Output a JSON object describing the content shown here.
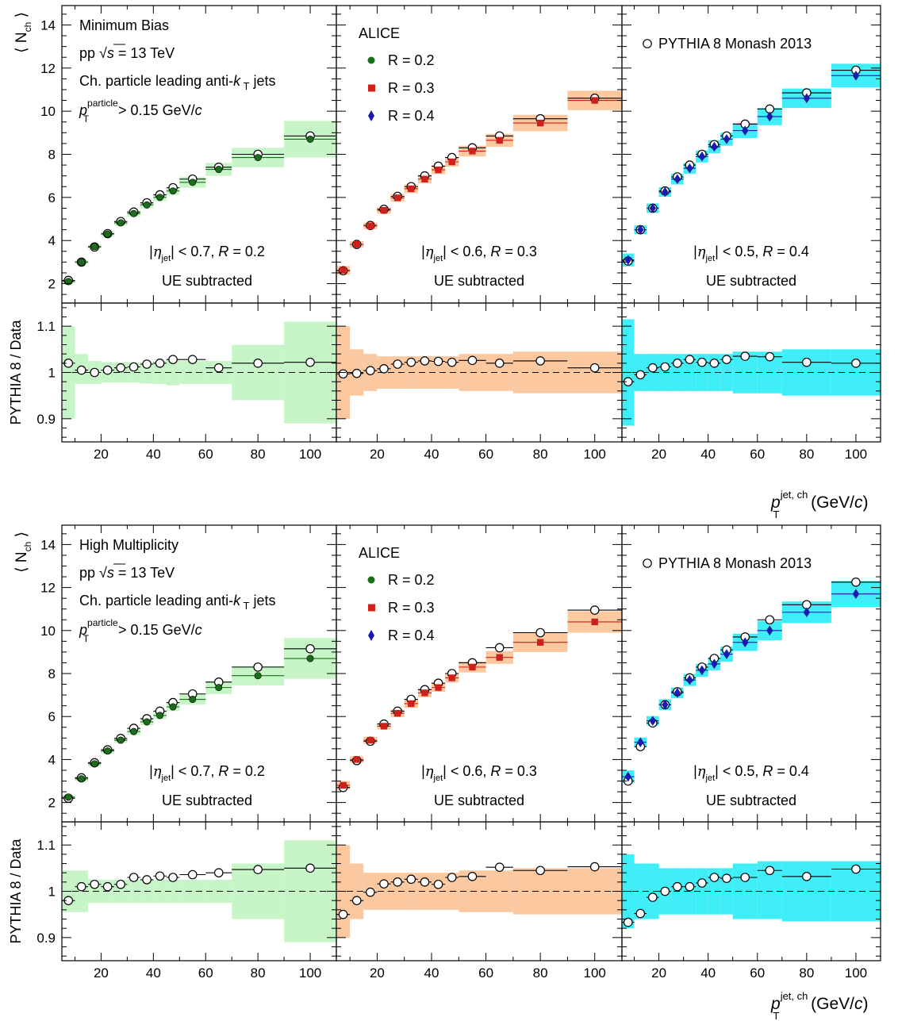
{
  "figure": {
    "ylabel_top": "⟨ N",
    "ylabel_top_sub": "ch",
    "ylabel_top_close": "⟩",
    "ylabel_ratio": "PYTHIA 8 / Data",
    "xlabel_p": "p",
    "xlabel_sup": "jet, ch",
    "xlabel_sub": "T",
    "xlabel_unit": "(GeV/",
    "xlabel_c": "c",
    "xlabel_close": ")",
    "pp_prefix": "pp",
    "pp_s": "s",
    "pp_energy": "= 13 TeV",
    "jets_prefix": "Ch. particle leading anti-",
    "jets_k": "k",
    "jets_T": "T",
    "jets_suffix": "jets",
    "pt_p": "p",
    "pt_sup": "particle",
    "pt_sub": "T",
    "pt_cut": "> 0.15 GeV/",
    "pt_c": "c",
    "alice": "ALICE",
    "pythia": "PYTHIA 8 Monash 2013",
    "ue": "UE subtracted",
    "colors": {
      "r02": "#1a6e1a",
      "r03": "#d0201a",
      "r04": "#1a1ab0",
      "band02": "#c8f5c8",
      "band03": "#fbc8a0",
      "band04": "#40eef8"
    },
    "icons": {
      "data_marker_r02": "filled-circle",
      "data_marker_r03": "filled-square",
      "data_marker_r04": "filled-diamond",
      "pythia_marker": "open-circle"
    }
  },
  "chart_data": [
    {
      "type": "scatter",
      "title": "Minimum Bias",
      "ylim_main": [
        1.1,
        14.9
      ],
      "yticks_main": [
        2,
        4,
        6,
        8,
        10,
        12,
        14
      ],
      "ylim_ratio": [
        0.85,
        1.15
      ],
      "yticks_ratio": [
        0.9,
        1,
        1.1
      ],
      "xlim": [
        5,
        110
      ],
      "xticks": [
        20,
        40,
        60,
        80,
        100
      ],
      "bin_edges": [
        5,
        10,
        15,
        20,
        25,
        30,
        35,
        40,
        45,
        50,
        60,
        70,
        90,
        110
      ],
      "panels": [
        {
          "label_eta": "| < 0.7, ",
          "label_R": " = 0.2",
          "R": 0.2,
          "data": [
            2.1,
            3.0,
            3.72,
            4.3,
            4.82,
            5.25,
            5.65,
            6.0,
            6.3,
            6.7,
            7.3,
            7.85,
            8.7
          ],
          "pythia": [
            2.15,
            3.0,
            3.7,
            4.32,
            4.88,
            5.32,
            5.75,
            6.12,
            6.45,
            6.85,
            7.4,
            8.0,
            8.85
          ],
          "sys_main": [
            0.06,
            0.1,
            0.1,
            0.12,
            0.12,
            0.15,
            0.15,
            0.18,
            0.18,
            0.25,
            0.3,
            0.45,
            0.85
          ],
          "ratio": [
            1.02,
            1.005,
            1.0,
            1.005,
            1.01,
            1.012,
            1.018,
            1.02,
            1.028,
            1.028,
            1.01,
            1.02,
            1.022
          ],
          "ratio_band": [
            [
              0.9,
              1.1
            ],
            [
              0.975,
              1.04
            ],
            [
              0.975,
              1.025
            ],
            [
              0.978,
              1.022
            ],
            [
              0.978,
              1.022
            ],
            [
              0.978,
              1.022
            ],
            [
              0.976,
              1.022
            ],
            [
              0.975,
              1.025
            ],
            [
              0.972,
              1.028
            ],
            [
              0.975,
              1.025
            ],
            [
              0.975,
              1.025
            ],
            [
              0.94,
              1.06
            ],
            [
              0.89,
              1.11
            ]
          ]
        },
        {
          "label_eta": "| < 0.6, ",
          "label_R": " = 0.3",
          "R": 0.3,
          "data": [
            2.62,
            3.82,
            4.68,
            5.4,
            5.98,
            6.4,
            6.85,
            7.28,
            7.65,
            8.15,
            8.65,
            9.45,
            10.5
          ],
          "pythia": [
            2.6,
            3.82,
            4.7,
            5.45,
            6.05,
            6.5,
            7.0,
            7.45,
            7.85,
            8.3,
            8.85,
            9.65,
            10.6
          ],
          "sys_main": [
            0.2,
            0.15,
            0.15,
            0.15,
            0.18,
            0.2,
            0.2,
            0.2,
            0.22,
            0.25,
            0.3,
            0.38,
            0.45
          ],
          "ratio": [
            0.997,
            0.998,
            1.004,
            1.008,
            1.018,
            1.022,
            1.025,
            1.024,
            1.022,
            1.026,
            1.02,
            1.025,
            1.01
          ],
          "ratio_band": [
            [
              0.9,
              1.1
            ],
            [
              0.95,
              1.05
            ],
            [
              0.96,
              1.04
            ],
            [
              0.965,
              1.035
            ],
            [
              0.965,
              1.035
            ],
            [
              0.965,
              1.035
            ],
            [
              0.965,
              1.035
            ],
            [
              0.965,
              1.035
            ],
            [
              0.965,
              1.035
            ],
            [
              0.96,
              1.04
            ],
            [
              0.96,
              1.04
            ],
            [
              0.955,
              1.045
            ],
            [
              0.955,
              1.045
            ]
          ]
        },
        {
          "label_eta": "| < 0.5, ",
          "label_R": " = 0.4",
          "R": 0.4,
          "data": [
            3.1,
            4.5,
            5.5,
            6.25,
            6.85,
            7.35,
            7.9,
            8.35,
            8.7,
            9.1,
            9.75,
            10.6,
            11.65
          ],
          "pythia": [
            3.05,
            4.5,
            5.5,
            6.3,
            6.95,
            7.5,
            8.0,
            8.45,
            8.85,
            9.4,
            10.1,
            10.85,
            11.9
          ],
          "sys_main": [
            0.3,
            0.2,
            0.22,
            0.22,
            0.25,
            0.25,
            0.28,
            0.3,
            0.3,
            0.35,
            0.4,
            0.45,
            0.55
          ],
          "ratio": [
            0.98,
            0.995,
            1.01,
            1.012,
            1.02,
            1.028,
            1.022,
            1.02,
            1.028,
            1.035,
            1.034,
            1.022,
            1.02
          ],
          "ratio_band": [
            [
              0.885,
              1.115
            ],
            [
              0.96,
              1.04
            ],
            [
              0.96,
              1.04
            ],
            [
              0.96,
              1.04
            ],
            [
              0.96,
              1.04
            ],
            [
              0.96,
              1.04
            ],
            [
              0.96,
              1.04
            ],
            [
              0.96,
              1.04
            ],
            [
              0.96,
              1.04
            ],
            [
              0.955,
              1.045
            ],
            [
              0.955,
              1.045
            ],
            [
              0.95,
              1.05
            ],
            [
              0.95,
              1.05
            ]
          ]
        }
      ]
    },
    {
      "type": "scatter",
      "title": "High Multiplicity",
      "ylim_main": [
        1.1,
        14.9
      ],
      "yticks_main": [
        2,
        4,
        6,
        8,
        10,
        12,
        14
      ],
      "ylim_ratio": [
        0.85,
        1.15
      ],
      "yticks_ratio": [
        0.9,
        1,
        1.1
      ],
      "xlim": [
        5,
        110
      ],
      "xticks": [
        20,
        40,
        60,
        80,
        100
      ],
      "bin_edges": [
        5,
        10,
        15,
        20,
        25,
        30,
        35,
        40,
        45,
        50,
        60,
        70,
        90,
        110
      ],
      "panels": [
        {
          "label_eta": "| < 0.7, ",
          "label_R": " = 0.2",
          "R": 0.2,
          "data": [
            2.25,
            3.1,
            3.8,
            4.4,
            4.9,
            5.3,
            5.75,
            6.05,
            6.45,
            6.8,
            7.35,
            7.9,
            8.7
          ],
          "pythia": [
            2.2,
            3.15,
            3.85,
            4.45,
            4.98,
            5.45,
            5.9,
            6.25,
            6.65,
            7.05,
            7.6,
            8.3,
            9.15
          ],
          "sys_main": [
            0.1,
            0.1,
            0.1,
            0.12,
            0.12,
            0.15,
            0.15,
            0.18,
            0.2,
            0.25,
            0.3,
            0.45,
            0.95
          ],
          "ratio": [
            0.98,
            1.01,
            1.015,
            1.01,
            1.015,
            1.03,
            1.025,
            1.033,
            1.03,
            1.036,
            1.04,
            1.047,
            1.05
          ],
          "ratio_band": [
            [
              0.955,
              1.045
            ],
            [
              0.955,
              1.045
            ],
            [
              0.975,
              1.025
            ],
            [
              0.975,
              1.025
            ],
            [
              0.975,
              1.025
            ],
            [
              0.975,
              1.025
            ],
            [
              0.975,
              1.025
            ],
            [
              0.975,
              1.025
            ],
            [
              0.975,
              1.025
            ],
            [
              0.975,
              1.025
            ],
            [
              0.975,
              1.025
            ],
            [
              0.94,
              1.06
            ],
            [
              0.89,
              1.11
            ]
          ]
        },
        {
          "label_eta": "| < 0.6, ",
          "label_R": " = 0.3",
          "R": 0.3,
          "data": [
            2.8,
            4.0,
            4.9,
            5.55,
            6.15,
            6.6,
            7.1,
            7.35,
            7.8,
            8.3,
            8.75,
            9.45,
            10.4
          ],
          "pythia": [
            2.7,
            3.95,
            4.85,
            5.65,
            6.25,
            6.8,
            7.25,
            7.55,
            8.0,
            8.5,
            9.2,
            9.9,
            10.95
          ],
          "sys_main": [
            0.2,
            0.15,
            0.15,
            0.15,
            0.18,
            0.2,
            0.2,
            0.2,
            0.22,
            0.25,
            0.3,
            0.45,
            0.5
          ],
          "ratio": [
            0.95,
            0.98,
            0.998,
            1.016,
            1.02,
            1.026,
            1.02,
            1.015,
            1.03,
            1.032,
            1.052,
            1.045,
            1.053
          ],
          "ratio_band": [
            [
              0.9,
              1.1
            ],
            [
              0.94,
              1.06
            ],
            [
              0.96,
              1.04
            ],
            [
              0.96,
              1.04
            ],
            [
              0.96,
              1.04
            ],
            [
              0.96,
              1.04
            ],
            [
              0.96,
              1.04
            ],
            [
              0.96,
              1.04
            ],
            [
              0.96,
              1.04
            ],
            [
              0.955,
              1.045
            ],
            [
              0.955,
              1.045
            ],
            [
              0.95,
              1.05
            ],
            [
              0.95,
              1.05
            ]
          ]
        },
        {
          "label_eta": "| < 0.5, ",
          "label_R": " = 0.4",
          "R": 0.4,
          "data": [
            3.2,
            4.8,
            5.8,
            6.55,
            7.1,
            7.7,
            8.15,
            8.45,
            8.9,
            9.45,
            10.0,
            10.85,
            11.7
          ],
          "pythia": [
            3.0,
            4.6,
            5.7,
            6.55,
            7.15,
            7.8,
            8.3,
            8.7,
            9.1,
            9.7,
            10.5,
            11.2,
            12.25
          ],
          "sys_main": [
            0.3,
            0.22,
            0.22,
            0.25,
            0.25,
            0.28,
            0.3,
            0.3,
            0.35,
            0.4,
            0.45,
            0.5,
            0.6
          ],
          "ratio": [
            0.933,
            0.952,
            0.987,
            1.0,
            1.01,
            1.01,
            1.018,
            1.03,
            1.028,
            1.03,
            1.045,
            1.032,
            1.048
          ],
          "ratio_band": [
            [
              0.92,
              1.08
            ],
            [
              0.94,
              1.06
            ],
            [
              0.94,
              1.06
            ],
            [
              0.95,
              1.05
            ],
            [
              0.95,
              1.05
            ],
            [
              0.95,
              1.05
            ],
            [
              0.95,
              1.05
            ],
            [
              0.95,
              1.05
            ],
            [
              0.95,
              1.05
            ],
            [
              0.94,
              1.06
            ],
            [
              0.94,
              1.065
            ],
            [
              0.935,
              1.065
            ],
            [
              0.935,
              1.065
            ]
          ]
        }
      ]
    }
  ]
}
